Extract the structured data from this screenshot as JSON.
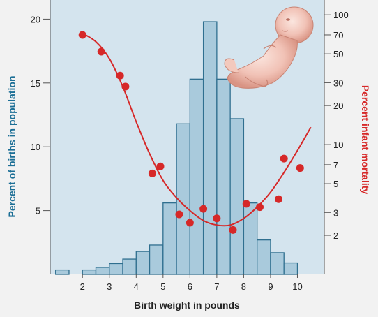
{
  "chart_data": {
    "type": "bar",
    "xlabel": "Birth weight in pounds",
    "ylabel_left": "Percent of births in population",
    "ylabel_right": "Percent infant mortality",
    "x_ticks": [
      2,
      3,
      4,
      5,
      6,
      7,
      8,
      9,
      10
    ],
    "y_left_ticks": [
      5,
      10,
      15,
      20
    ],
    "y_right_ticks": [
      2,
      3,
      5,
      7,
      10,
      20,
      30,
      50,
      70,
      100
    ],
    "y_right_scale": "log",
    "xlim": [
      0.8,
      11.0
    ],
    "ylim_left": [
      0,
      21.5
    ],
    "ylim_right": [
      1.0,
      130
    ],
    "histogram": {
      "name": "Percent of births in population",
      "bins": [
        {
          "x0": 1.0,
          "x1": 1.5,
          "value": 0.35
        },
        {
          "x0": 2.0,
          "x1": 2.5,
          "value": 0.35
        },
        {
          "x0": 2.5,
          "x1": 3.0,
          "value": 0.55
        },
        {
          "x0": 3.0,
          "x1": 3.5,
          "value": 0.85
        },
        {
          "x0": 3.5,
          "x1": 4.0,
          "value": 1.2
        },
        {
          "x0": 4.0,
          "x1": 4.5,
          "value": 1.8
        },
        {
          "x0": 4.5,
          "x1": 5.0,
          "value": 2.3
        },
        {
          "x0": 5.0,
          "x1": 5.5,
          "value": 5.6
        },
        {
          "x0": 5.5,
          "x1": 6.0,
          "value": 11.8
        },
        {
          "x0": 6.0,
          "x1": 6.5,
          "value": 15.3
        },
        {
          "x0": 6.5,
          "x1": 7.0,
          "value": 19.8
        },
        {
          "x0": 7.0,
          "x1": 7.5,
          "value": 15.3
        },
        {
          "x0": 7.5,
          "x1": 8.0,
          "value": 12.2
        },
        {
          "x0": 8.0,
          "x1": 8.5,
          "value": 5.6
        },
        {
          "x0": 8.5,
          "x1": 9.0,
          "value": 2.7
        },
        {
          "x0": 9.0,
          "x1": 9.5,
          "value": 1.7
        },
        {
          "x0": 9.5,
          "x1": 10.0,
          "value": 0.9
        }
      ]
    },
    "mortality_points": {
      "name": "Percent infant mortality",
      "x": [
        2.0,
        2.7,
        3.4,
        3.6,
        4.6,
        4.9,
        5.6,
        6.0,
        6.5,
        7.0,
        7.6,
        8.1,
        8.6,
        9.3,
        9.5,
        10.1
      ],
      "y": [
        70,
        52,
        34,
        28,
        6,
        6.8,
        2.9,
        2.5,
        3.2,
        2.7,
        2.2,
        3.5,
        3.3,
        3.8,
        7.8,
        6.6
      ]
    },
    "mortality_curve": {
      "x": [
        2.0,
        2.5,
        3.0,
        3.5,
        4.0,
        4.5,
        5.0,
        5.5,
        6.0,
        6.5,
        7.0,
        7.5,
        8.0,
        8.5,
        9.0,
        9.5,
        10.0,
        10.5
      ],
      "y": [
        72,
        62,
        46,
        28,
        15,
        8.5,
        5.3,
        3.9,
        3.1,
        2.6,
        2.4,
        2.4,
        2.7,
        3.3,
        4.3,
        6.1,
        9.0,
        13.6
      ]
    },
    "colors": {
      "plot_bg": "#d4e4ee",
      "bar_fill": "#a9cadc",
      "bar_stroke": "#2f6f8f",
      "mortality": "#d62828",
      "left_axis_label": "#1c6f96",
      "right_axis_label": "#d62828",
      "axis": "#555555"
    },
    "illustration": "human-fetus-image"
  }
}
